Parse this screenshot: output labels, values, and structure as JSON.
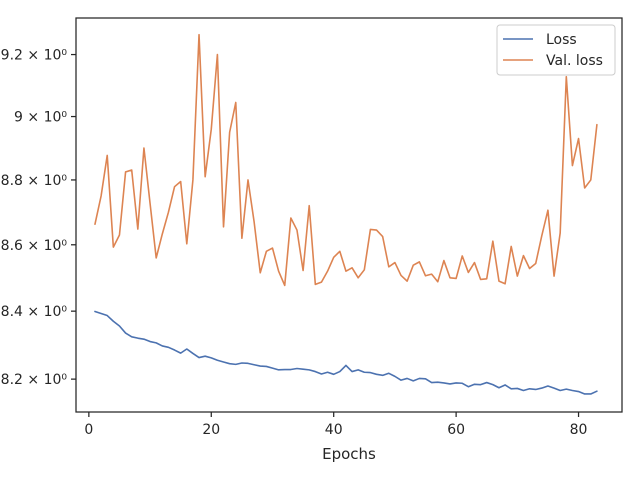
{
  "chart_data": {
    "type": "line",
    "title": "",
    "xlabel": "Epochs",
    "ylabel": "",
    "yscale": "log",
    "grid": false,
    "legend_position": "top-right",
    "xlim": [
      -2.1,
      87.1
    ],
    "ylim": [
      8.105,
      9.32
    ],
    "x_ticks": [
      0,
      20,
      40,
      60,
      80
    ],
    "x_tick_labels": [
      "0",
      "20",
      "40",
      "60",
      "80"
    ],
    "y_ticks": [
      8.2,
      8.4,
      8.6,
      8.8,
      9.0,
      9.2
    ],
    "y_tick_labels": [
      "8.2 × 10⁰",
      "8.4 × 10⁰",
      "8.6 × 10⁰",
      "8.8 × 10⁰",
      "9 × 10⁰",
      "9.2 × 10⁰"
    ],
    "series": [
      {
        "name": "Loss",
        "color": "#4c72b0",
        "x": [
          1,
          2,
          3,
          4,
          5,
          6,
          7,
          8,
          9,
          10,
          11,
          12,
          13,
          14,
          15,
          16,
          17,
          18,
          19,
          20,
          21,
          22,
          23,
          24,
          25,
          26,
          27,
          28,
          29,
          30,
          31,
          32,
          33,
          34,
          35,
          36,
          37,
          38,
          39,
          40,
          41,
          42,
          43,
          44,
          45,
          46,
          47,
          48,
          49,
          50,
          51,
          52,
          53,
          54,
          55,
          56,
          57,
          58,
          59,
          60,
          61,
          62,
          63,
          64,
          65,
          66,
          67,
          68,
          69,
          70,
          71,
          72,
          73,
          74,
          75,
          76,
          77,
          78,
          79,
          80,
          81,
          82,
          83
        ],
        "values": [
          8.399,
          8.393,
          8.387,
          8.37,
          8.356,
          8.335,
          8.324,
          8.32,
          8.317,
          8.31,
          8.306,
          8.297,
          8.293,
          8.285,
          8.276,
          8.288,
          8.275,
          8.263,
          8.267,
          8.262,
          8.255,
          8.25,
          8.245,
          8.243,
          8.247,
          8.246,
          8.242,
          8.238,
          8.237,
          8.232,
          8.227,
          8.228,
          8.228,
          8.231,
          8.229,
          8.227,
          8.222,
          8.215,
          8.22,
          8.214,
          8.222,
          8.24,
          8.222,
          8.227,
          8.22,
          8.219,
          8.214,
          8.211,
          8.217,
          8.208,
          8.197,
          8.202,
          8.195,
          8.202,
          8.201,
          8.19,
          8.191,
          8.189,
          8.186,
          8.189,
          8.188,
          8.178,
          8.185,
          8.184,
          8.19,
          8.184,
          8.175,
          8.183,
          8.172,
          8.173,
          8.167,
          8.172,
          8.17,
          8.174,
          8.18,
          8.174,
          8.167,
          8.171,
          8.167,
          8.164,
          8.157,
          8.157,
          8.165
        ]
      },
      {
        "name": "Val. loss",
        "color": "#dd8452",
        "x": [
          1,
          2,
          3,
          4,
          5,
          6,
          7,
          8,
          9,
          10,
          11,
          12,
          13,
          14,
          15,
          16,
          17,
          18,
          19,
          20,
          21,
          22,
          23,
          24,
          25,
          26,
          27,
          28,
          29,
          30,
          31,
          32,
          33,
          34,
          35,
          36,
          37,
          38,
          39,
          40,
          41,
          42,
          43,
          44,
          45,
          46,
          47,
          48,
          49,
          50,
          51,
          52,
          53,
          54,
          55,
          56,
          57,
          58,
          59,
          60,
          61,
          62,
          63,
          64,
          65,
          66,
          67,
          68,
          69,
          70,
          71,
          72,
          73,
          74,
          75,
          76,
          77,
          78,
          79,
          80,
          81,
          82,
          83
        ],
        "values": [
          8.663,
          8.75,
          8.877,
          8.593,
          8.63,
          8.825,
          8.831,
          8.648,
          8.9,
          8.727,
          8.56,
          8.633,
          8.7,
          8.779,
          8.795,
          8.603,
          8.8,
          9.265,
          8.81,
          8.96,
          9.2,
          8.655,
          8.95,
          9.045,
          8.62,
          8.8,
          8.67,
          8.515,
          8.58,
          8.59,
          8.52,
          8.477,
          8.682,
          8.645,
          8.522,
          8.72,
          8.48,
          8.487,
          8.52,
          8.562,
          8.58,
          8.52,
          8.53,
          8.5,
          8.524,
          8.647,
          8.645,
          8.625,
          8.533,
          8.546,
          8.507,
          8.49,
          8.538,
          8.548,
          8.506,
          8.511,
          8.488,
          8.552,
          8.5,
          8.498,
          8.566,
          8.516,
          8.546,
          8.495,
          8.497,
          8.611,
          8.49,
          8.482,
          8.595,
          8.505,
          8.567,
          8.528,
          8.543,
          8.628,
          8.706,
          8.505,
          8.636,
          9.128,
          8.845,
          8.93,
          8.775,
          8.8,
          8.974
        ]
      }
    ]
  }
}
